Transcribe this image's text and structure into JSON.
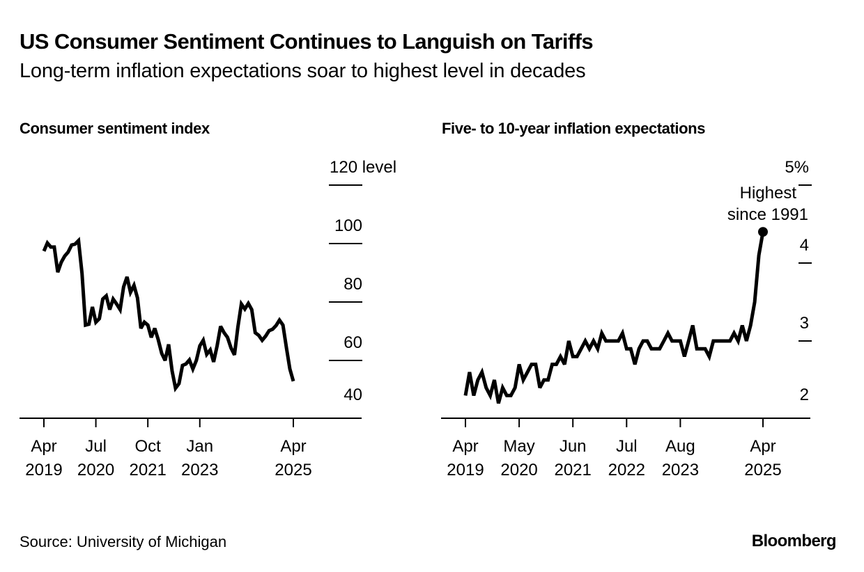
{
  "header": {
    "title": "US Consumer Sentiment Continues to Languish on Tariffs",
    "subtitle": "Long-term inflation expectations soar to highest level in decades"
  },
  "footer": {
    "source": "Source: University of Michigan",
    "brand": "Bloomberg"
  },
  "chart_data": [
    {
      "type": "line",
      "title": "Consumer sentiment index",
      "xlabel": "",
      "ylabel": "level",
      "x_start": "2019-04",
      "x_frequency": "monthly",
      "ylim": [
        40,
        120
      ],
      "y_ticks": [
        40,
        60,
        80,
        100,
        120
      ],
      "y_tick_labels": [
        "40",
        "60",
        "80",
        "100",
        "120 level"
      ],
      "x_ticks": [
        {
          "month_index": 0,
          "line1": "Apr",
          "line2": "2019"
        },
        {
          "month_index": 15,
          "line1": "Jul",
          "line2": "2020"
        },
        {
          "month_index": 30,
          "line1": "Oct",
          "line2": "2021"
        },
        {
          "month_index": 45,
          "line1": "Jan",
          "line2": "2023"
        },
        {
          "month_index": 72,
          "line1": "Apr",
          "line2": "2025"
        }
      ],
      "x_range_months": [
        -7,
        80
      ],
      "grid": false,
      "axis_side": "right",
      "series": [
        {
          "name": "Consumer sentiment index",
          "color": "#000000",
          "values": [
            97.4,
            100.2,
            98.8,
            98.8,
            90.2,
            93.6,
            95.7,
            97.1,
            99.5,
            99.8,
            101.0,
            89.8,
            72.1,
            72.4,
            78.3,
            73.1,
            74.3,
            81.0,
            82.1,
            77.4,
            81.0,
            79.3,
            77.4,
            85.2,
            88.6,
            83.3,
            85.7,
            81.4,
            71.0,
            73.1,
            72.1,
            67.9,
            71.0,
            67.1,
            62.4,
            60.0,
            65.5,
            56.4,
            50.5,
            52.1,
            58.3,
            58.8,
            60.2,
            57.1,
            60.0,
            65.0,
            66.9,
            62.1,
            63.6,
            59.5,
            65.0,
            71.7,
            69.5,
            67.9,
            64.3,
            61.9,
            71.4,
            79.3,
            77.6,
            79.5,
            77.4,
            69.5,
            68.6,
            66.9,
            68.3,
            70.2,
            70.7,
            71.9,
            73.8,
            72.1,
            64.3,
            57.1,
            52.9
          ]
        }
      ]
    },
    {
      "type": "line",
      "title": "Five- to 10-year inflation expectations",
      "xlabel": "",
      "ylabel": "%",
      "x_start": "2019-04",
      "x_frequency": "monthly",
      "ylim": [
        2,
        5
      ],
      "y_ticks": [
        2,
        3,
        4,
        5
      ],
      "y_tick_labels": [
        "2",
        "3",
        "4",
        "5%"
      ],
      "x_ticks": [
        {
          "month_index": 0,
          "line1": "Apr",
          "line2": "2019"
        },
        {
          "month_index": 13,
          "line1": "May",
          "line2": "2020"
        },
        {
          "month_index": 26,
          "line1": "Jun",
          "line2": "2021"
        },
        {
          "month_index": 39,
          "line1": "Jul",
          "line2": "2022"
        },
        {
          "month_index": 52,
          "line1": "Aug",
          "line2": "2023"
        },
        {
          "month_index": 72,
          "line1": "Apr",
          "line2": "2025"
        }
      ],
      "x_range_months": [
        -6,
        83
      ],
      "grid": false,
      "axis_side": "right",
      "annotation": {
        "line1": "Highest",
        "line2": "since 1991",
        "month_index": 72,
        "value": 4.4,
        "marker": "dot"
      },
      "series": [
        {
          "name": "Five- to 10-year inflation expectations",
          "color": "#000000",
          "values": [
            2.3,
            2.6,
            2.3,
            2.5,
            2.6,
            2.4,
            2.3,
            2.5,
            2.2,
            2.4,
            2.3,
            2.3,
            2.4,
            2.7,
            2.5,
            2.6,
            2.7,
            2.7,
            2.4,
            2.5,
            2.5,
            2.7,
            2.7,
            2.8,
            2.7,
            3.0,
            2.8,
            2.8,
            2.9,
            3.0,
            2.9,
            3.0,
            2.9,
            3.1,
            3.0,
            3.0,
            3.0,
            3.0,
            3.1,
            2.9,
            2.9,
            2.7,
            2.9,
            3.0,
            3.0,
            2.9,
            2.9,
            2.9,
            3.0,
            3.1,
            3.0,
            3.0,
            3.0,
            2.8,
            3.0,
            3.2,
            2.9,
            2.9,
            2.9,
            2.8,
            3.0,
            3.0,
            3.0,
            3.0,
            3.0,
            3.1,
            3.0,
            3.2,
            3.0,
            3.2,
            3.5,
            4.1,
            4.4
          ]
        }
      ]
    }
  ]
}
